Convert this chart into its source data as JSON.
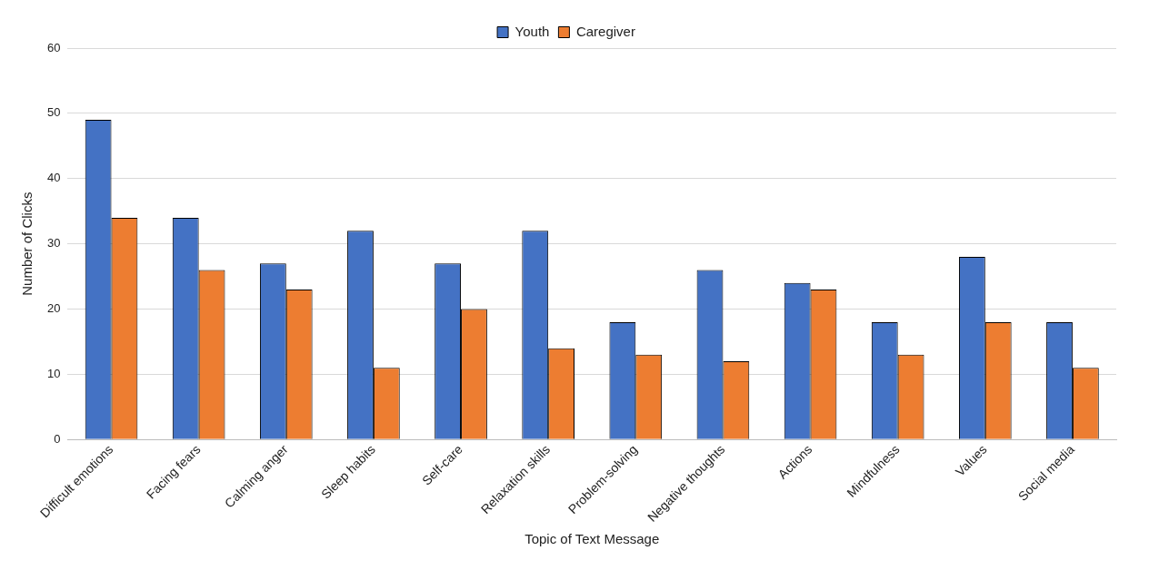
{
  "chart_data": {
    "type": "bar",
    "xlabel": "Topic of Text Message",
    "ylabel": "Number of Clicks",
    "categories": [
      "Difficult emotions",
      "Facing fears",
      "Calming anger",
      "Sleep habits",
      "Self-care",
      "Relaxation skills",
      "Problem-solving",
      "Negative thoughts",
      "Actions",
      "Mindfulness",
      "Values",
      "Social media"
    ],
    "series": [
      {
        "name": "Youth",
        "color": "#4472c4",
        "values": [
          49,
          34,
          27,
          32,
          27,
          32,
          18,
          26,
          24,
          18,
          28,
          18
        ]
      },
      {
        "name": "Caregiver",
        "color": "#ed7d31",
        "values": [
          34,
          26,
          23,
          11,
          20,
          14,
          13,
          12,
          23,
          13,
          18,
          11
        ]
      }
    ],
    "ylim": [
      0,
      60
    ],
    "yticks": [
      0,
      10,
      20,
      30,
      40,
      50,
      60
    ],
    "grid": "y",
    "legend": "top"
  }
}
